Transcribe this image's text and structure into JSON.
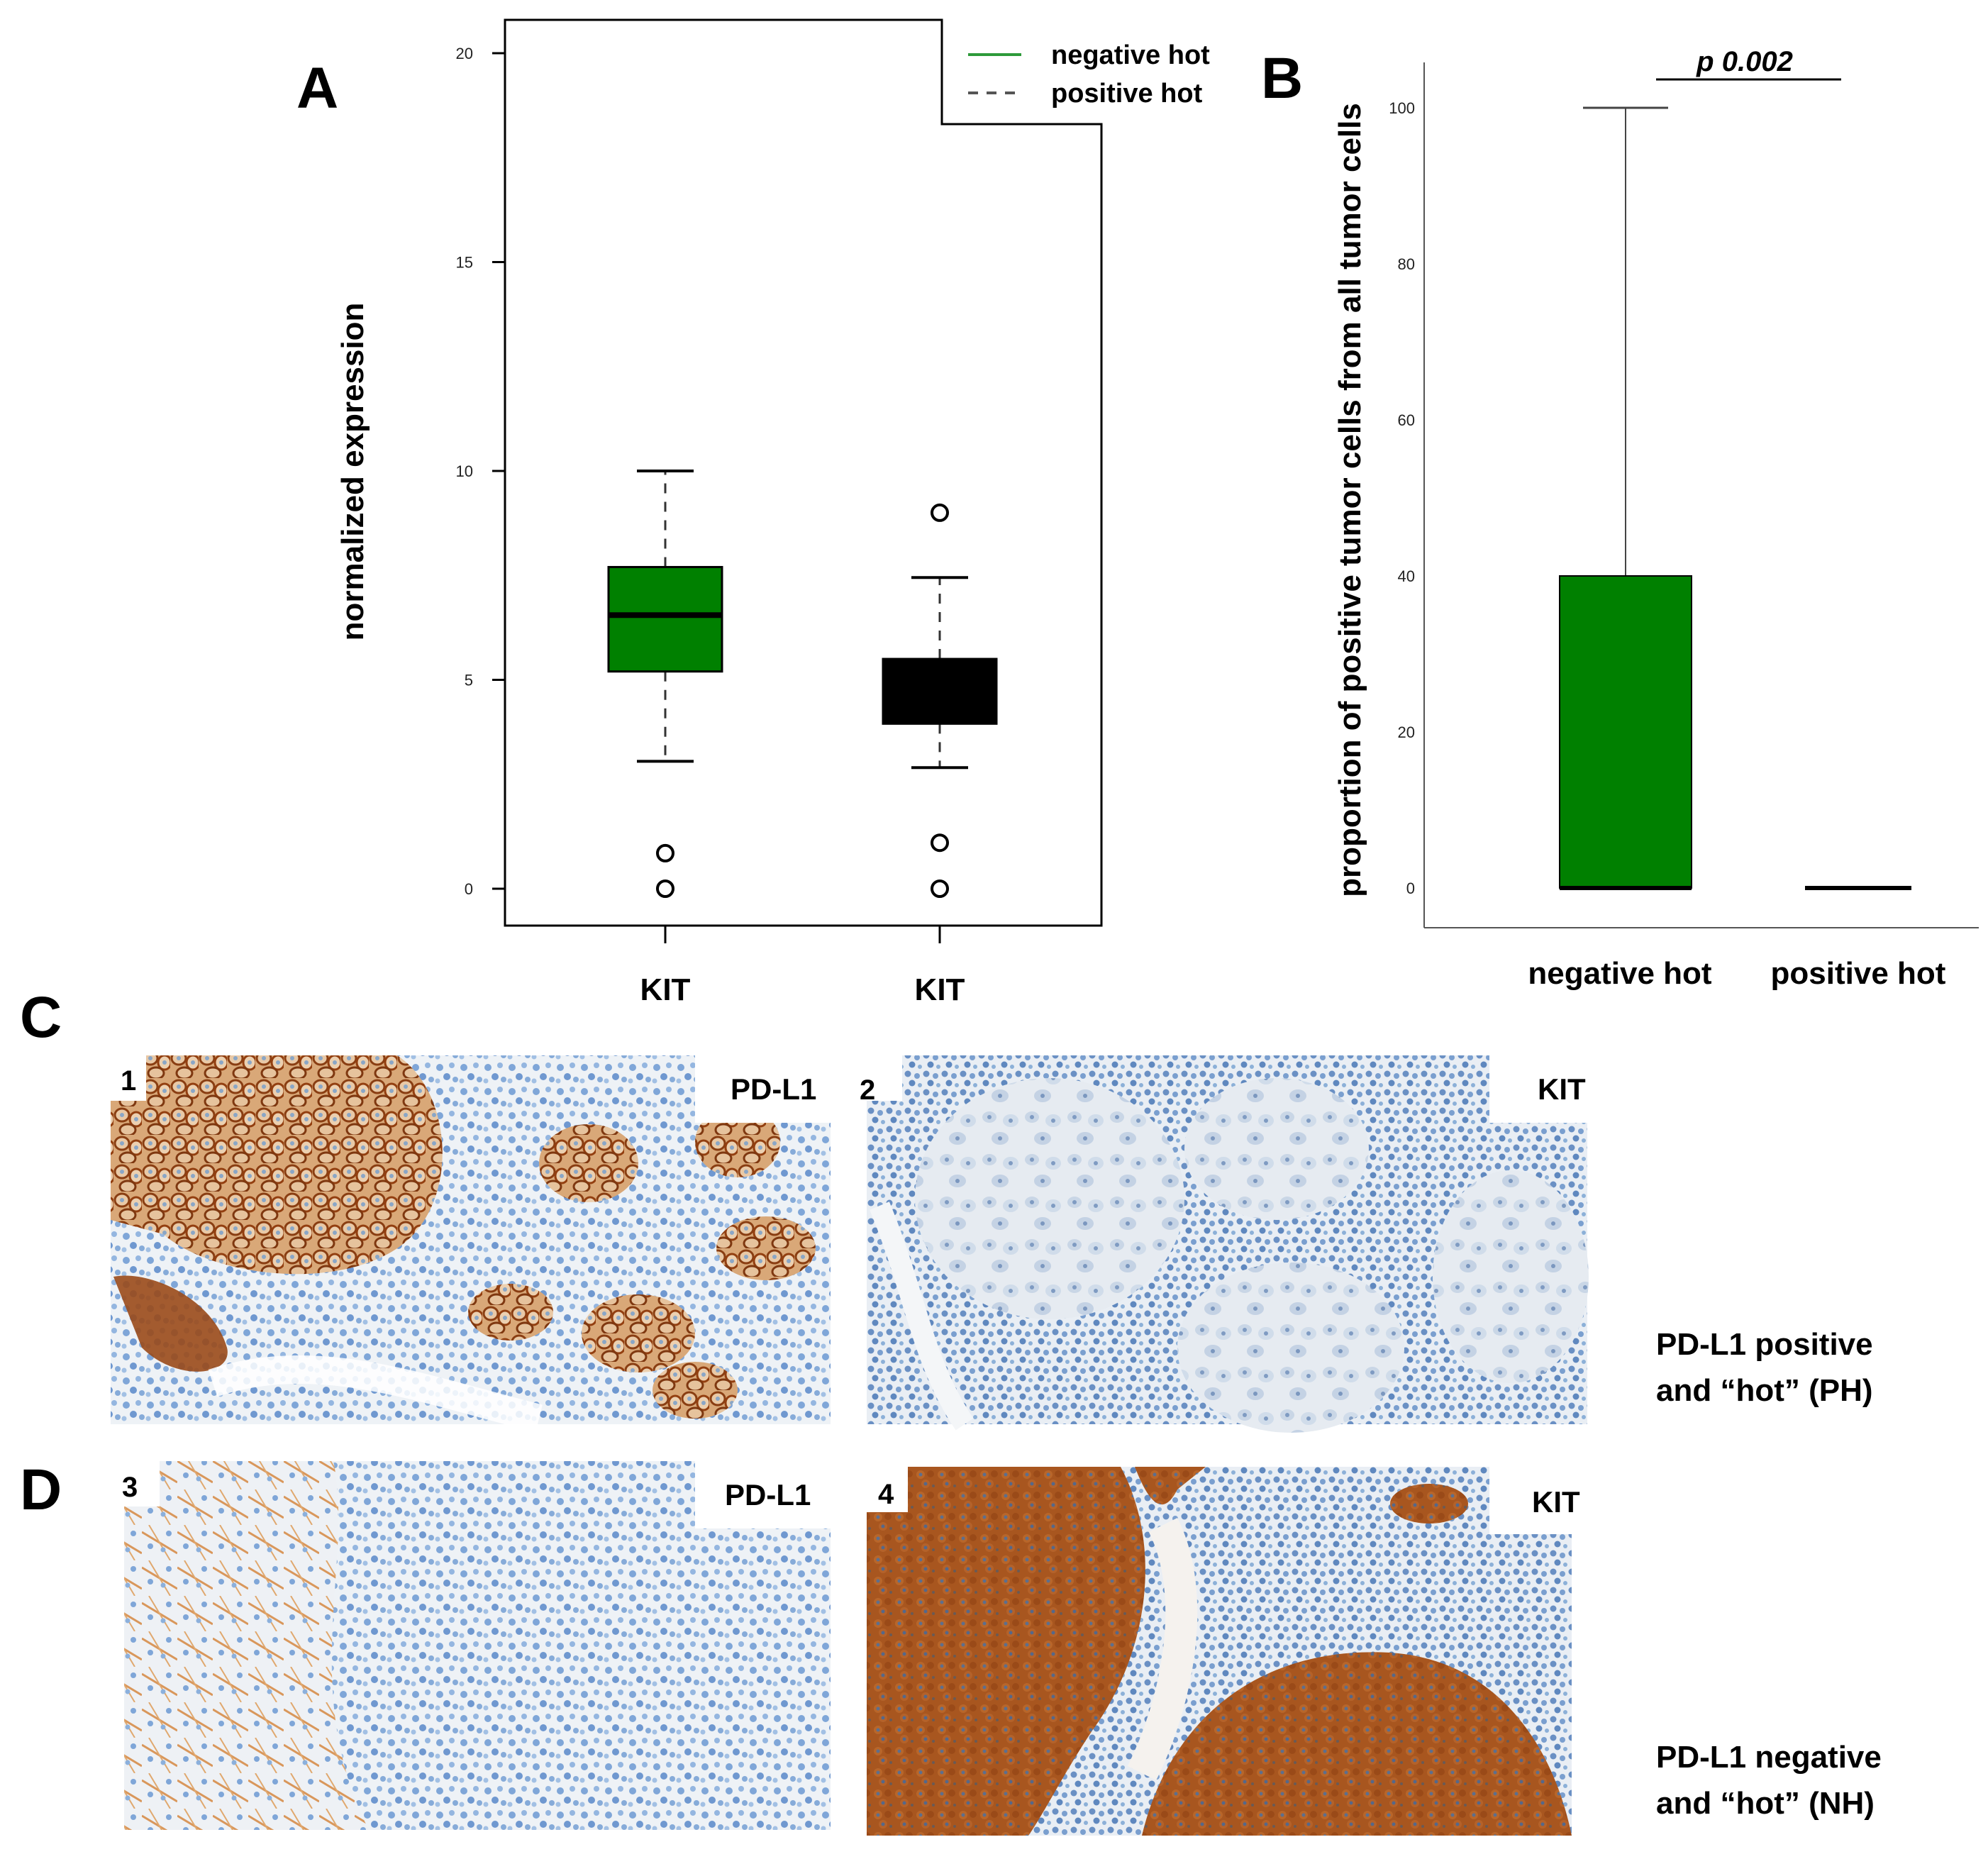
{
  "panels": {
    "A": "A",
    "B": "B",
    "C": "C",
    "D": "D"
  },
  "chart_data": [
    {
      "type": "box",
      "panel": "A",
      "ylabel": "normalized expression",
      "ylim": [
        0,
        20
      ],
      "yticks": [
        0,
        5,
        10,
        15,
        20
      ],
      "categories": [
        "KIT",
        "KIT"
      ],
      "legend": {
        "placement": "top-right",
        "entries": [
          {
            "label": "negative hot",
            "style": "solid",
            "color": "#2e9a3a"
          },
          {
            "label": "positive hot",
            "style": "dashed",
            "color": "#555555"
          }
        ]
      },
      "boxes": [
        {
          "category": "KIT",
          "group": "negative hot",
          "color": "#008000",
          "whisker_low": 3.05,
          "q1": 5.2,
          "median": 6.55,
          "q3": 7.7,
          "whisker_high": 10.0,
          "outliers": [
            0.85,
            0.0
          ]
        },
        {
          "category": "KIT",
          "group": "positive hot",
          "color": "#000000",
          "whisker_low": 2.9,
          "q1": 3.95,
          "median": 4.7,
          "q3": 5.5,
          "whisker_high": 7.45,
          "outliers": [
            9.0,
            1.1,
            0.0
          ]
        }
      ]
    },
    {
      "type": "box",
      "panel": "B",
      "ylabel": "proportion  of positive tumor cells from all tumor cells",
      "ylim": [
        0,
        100
      ],
      "yticks": [
        0,
        20,
        40,
        60,
        80,
        100
      ],
      "categories": [
        "negative hot",
        "positive hot"
      ],
      "annotation": "p 0.002",
      "boxes": [
        {
          "category": "negative hot",
          "color": "#008000",
          "whisker_low": 0,
          "q1": 0,
          "median": 0,
          "q3": 40,
          "whisker_high": 100
        },
        {
          "category": "positive hot",
          "color": "#000000",
          "whisker_low": 0,
          "q1": 0,
          "median": 0,
          "q3": 0,
          "whisker_high": 0
        }
      ]
    }
  ],
  "micrographs": [
    {
      "number": "1",
      "stain": "PD-L1",
      "pattern": "pdl1-positive"
    },
    {
      "number": "2",
      "stain": "KIT",
      "pattern": "kit-negative"
    },
    {
      "number": "3",
      "stain": "PD-L1",
      "pattern": "pdl1-negative"
    },
    {
      "number": "4",
      "stain": "KIT",
      "pattern": "kit-positive"
    }
  ],
  "captions": {
    "row_c": [
      "PD-L1 positive",
      "and “hot” (PH)"
    ],
    "row_d": [
      "PD-L1 negative",
      "and “hot” (NH)"
    ]
  },
  "colors": {
    "green": "#008000",
    "black": "#000000",
    "brown": "#9a4a1a",
    "hematoxylin": "#6f9fd4"
  }
}
